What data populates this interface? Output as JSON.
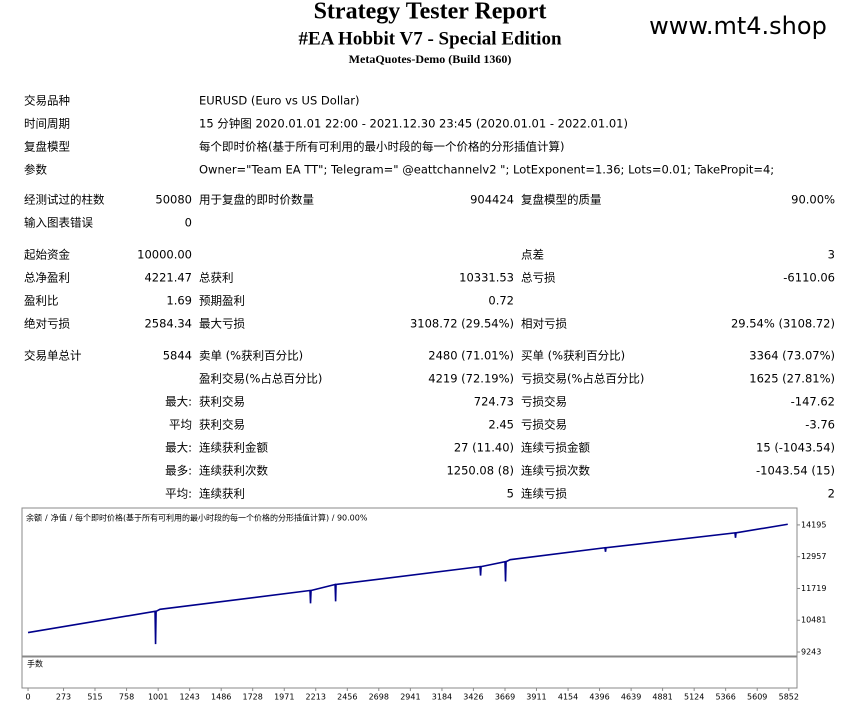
{
  "header": {
    "title": "Strategy Tester Report",
    "subtitle": "#EA Hobbit V7 - Special Edition",
    "build": "MetaQuotes-Demo (Build 1360)",
    "watermark": "www.mt4.shop"
  },
  "table": {
    "groups": [
      [
        [
          "交易品种",
          null,
          "EURUSD (Euro vs US Dollar)",
          null,
          null,
          null
        ],
        [
          "时间周期",
          null,
          "15 分钟图 2020.01.01 22:00 - 2021.12.30 23:45 (2020.01.01 - 2022.01.01)",
          null,
          null,
          null
        ],
        [
          "复盘模型",
          null,
          "每个即时价格(基于所有可利用的最小时段的每一个价格的分形插值计算)",
          null,
          null,
          null
        ],
        [
          "参数",
          null,
          "Owner=\"Team EA TT\"; Telegram=\" @eattchannelv2 \"; LotExponent=1.36; Lots=0.01; TakePropit=4;",
          null,
          null,
          null
        ]
      ],
      [
        [
          "经测试过的柱数",
          "50080",
          "用于复盘的即时价数量",
          "904424",
          "复盘模型的质量",
          "90.00%"
        ],
        [
          "输入图表错误",
          "0",
          null,
          null,
          null,
          null
        ]
      ],
      [
        [
          "起始资金",
          "10000.00",
          null,
          null,
          "点差",
          "3"
        ],
        [
          "总净盈利",
          "4221.47",
          "总获利",
          "10331.53",
          "总亏损",
          "-6110.06"
        ],
        [
          "盈利比",
          "1.69",
          "预期盈利",
          "0.72",
          null,
          null
        ],
        [
          "绝对亏损",
          "2584.34",
          "最大亏损",
          "3108.72 (29.54%)",
          "相对亏损",
          "29.54% (3108.72)"
        ]
      ],
      [
        [
          "交易单总计",
          "5844",
          "卖单 (%获利百分比)",
          "2480 (71.01%)",
          "买单 (%获利百分比)",
          "3364 (73.07%)"
        ],
        [
          null,
          null,
          "盈利交易(%占总百分比)",
          "4219 (72.19%)",
          "亏损交易(%占总百分比)",
          "1625 (27.81%)"
        ],
        [
          null,
          "最大:",
          "获利交易",
          "724.73",
          "亏损交易",
          "-147.62"
        ],
        [
          null,
          "平均",
          "获利交易",
          "2.45",
          "亏损交易",
          "-3.76"
        ],
        [
          null,
          "最大:",
          "连续获利金额",
          "27 (11.40)",
          "连续亏损金额",
          "15 (-1043.54)"
        ],
        [
          null,
          "最多:",
          "连续获利次数",
          "1250.08 (8)",
          "连续亏损次数",
          "-1043.54 (15)"
        ],
        [
          null,
          "平均:",
          "连续获利",
          "5",
          "连续亏损",
          "2"
        ]
      ]
    ]
  },
  "chart_data": {
    "type": "line",
    "legend": [
      {
        "text": "余额",
        "color": "#0000c8"
      },
      {
        "text": "/",
        "color": "#000000"
      },
      {
        "text": "净值",
        "color": "#00a000"
      },
      {
        "text": "/ 每个即时价格(基于所有可利用的最小时段的每一个价格的分形插值计算) / 90.00%",
        "color": "#000000"
      }
    ],
    "volume_label": "手数",
    "x": [
      0,
      977,
      981,
      985,
      1015,
      2169,
      2173,
      2177,
      2362,
      2366,
      2369,
      3477,
      3481,
      3485,
      3669,
      3673,
      3677,
      3708,
      4438,
      4442,
      4446,
      5438,
      5442,
      5446,
      5844
    ],
    "series": [
      {
        "name": "余额",
        "color": "#00008b",
        "values": [
          10000,
          10828,
          9551,
          10828,
          10906,
          11641,
          11138,
          11641,
          11873,
          11215,
          11873,
          12570,
          12221,
          12570,
          12763,
          11989,
          12763,
          12840,
          13305,
          13150,
          13305,
          13885,
          13692,
          13885,
          14221.47
        ]
      }
    ],
    "xlim": [
      -31,
      5915
    ],
    "ylim": [
      9127,
      14776
    ],
    "xticks": [
      0,
      273,
      515,
      758,
      1001,
      1243,
      1486,
      1728,
      1971,
      2213,
      2456,
      2698,
      2941,
      3184,
      3426,
      3669,
      3911,
      4154,
      4396,
      4639,
      4881,
      5124,
      5366,
      5609,
      5852
    ],
    "yticks": [
      9243,
      10481,
      11719,
      12957,
      14195
    ]
  }
}
